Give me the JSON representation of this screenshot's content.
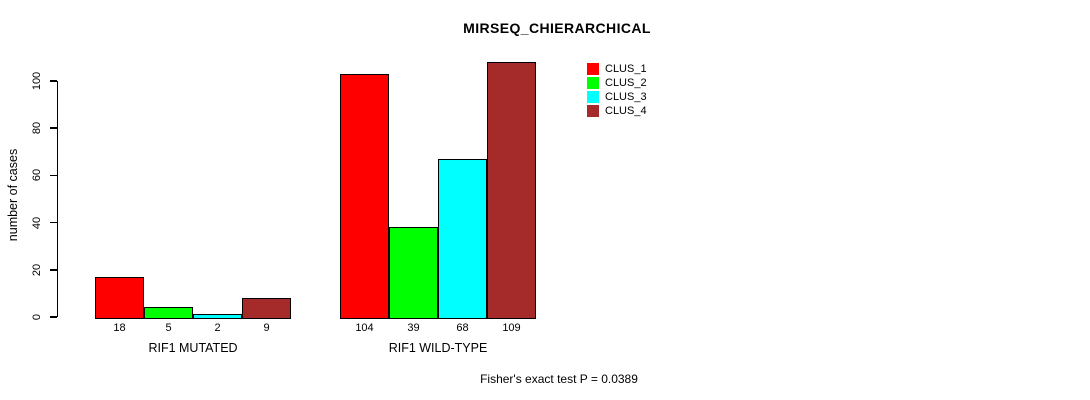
{
  "figure": {
    "background": "#FFFFFF",
    "text_color": "#000000"
  },
  "chart_data": {
    "type": "bar",
    "title": "MIRSEQ_CHIERARCHICAL",
    "xlabel": "",
    "ylabel": "number of cases",
    "ylim": [
      0,
      109
    ],
    "yticks": [
      0,
      20,
      40,
      60,
      80,
      100
    ],
    "categories": [
      "RIF1 MUTATED",
      "RIF1 WILD-TYPE"
    ],
    "series": [
      {
        "name": "CLUS_1",
        "color": "#FF0000",
        "values": [
          18,
          104
        ]
      },
      {
        "name": "CLUS_2",
        "color": "#00FF00",
        "values": [
          5,
          39
        ]
      },
      {
        "name": "CLUS_3",
        "color": "#00FFFF",
        "values": [
          2,
          68
        ]
      },
      {
        "name": "CLUS_4",
        "color": "#A52A2A",
        "values": [
          9,
          109
        ]
      }
    ],
    "bar_value_labels": [
      [
        18,
        5,
        2,
        9
      ],
      [
        104,
        39,
        68,
        109
      ]
    ],
    "grid": false,
    "legend_position": "top-right",
    "bar_border_color": "#000000",
    "axis_color": "#000000",
    "annotation": "Fisher's exact test P = 0.0389"
  }
}
